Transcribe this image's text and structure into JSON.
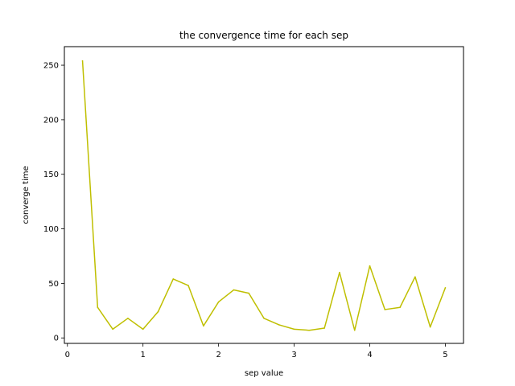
{
  "chart_data": {
    "type": "line",
    "title": "the convergence time for each sep",
    "xlabel": "sep value",
    "ylabel": "converge time",
    "xlim": [
      -0.04,
      5.24
    ],
    "ylim": [
      -5,
      267
    ],
    "xticks": [
      0,
      1,
      2,
      3,
      4,
      5
    ],
    "yticks": [
      0,
      50,
      100,
      150,
      200,
      250
    ],
    "grid": false,
    "series": [
      {
        "color": "#bfbf00",
        "x": [
          0.2,
          0.4,
          0.6,
          0.8,
          1.0,
          1.2,
          1.4,
          1.6,
          1.8,
          2.0,
          2.2,
          2.4,
          2.6,
          2.8,
          3.0,
          3.2,
          3.4,
          3.6,
          3.8,
          4.0,
          4.2,
          4.4,
          4.6,
          4.8,
          5.0
        ],
        "y": [
          254,
          28,
          8,
          18,
          8,
          24,
          54,
          48,
          11,
          33,
          44,
          41,
          18,
          12,
          8,
          7,
          9,
          60,
          7,
          66,
          26,
          28,
          56,
          10,
          46
        ]
      }
    ]
  }
}
